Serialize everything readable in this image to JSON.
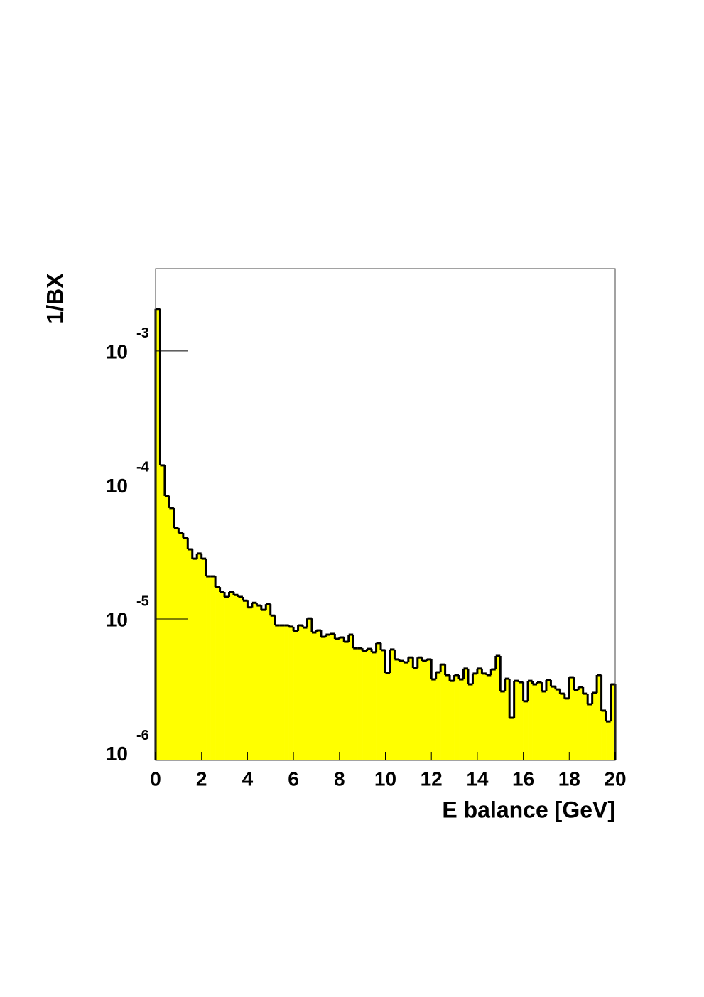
{
  "chart_data": {
    "type": "histogram",
    "ylabel": "1/BX",
    "xlabel": "E balance  [GeV]",
    "bins": [
      0,
      0.2,
      0.4,
      0.6,
      0.8,
      1,
      1.2,
      1.4,
      1.6,
      1.8,
      2,
      2.2,
      2.4,
      2.6,
      2.8,
      3,
      3.2,
      3.4,
      3.6,
      3.8,
      4,
      4.2,
      4.4,
      4.6,
      4.8,
      5,
      5.2,
      5.4,
      5.6,
      5.8,
      6,
      6.2,
      6.4,
      6.6,
      6.8,
      7,
      7.2,
      7.4,
      7.6,
      7.8,
      8,
      8.2,
      8.4,
      8.6,
      8.8,
      9,
      9.2,
      9.4,
      9.6,
      9.8,
      10,
      10.2,
      10.4,
      10.6,
      10.8,
      11,
      11.2,
      11.4,
      11.6,
      11.8,
      12,
      12.2,
      12.4,
      12.6,
      12.8,
      13,
      13.2,
      13.4,
      13.6,
      13.8,
      14,
      14.2,
      14.4,
      14.6,
      14.8,
      15,
      15.2,
      15.4,
      15.6,
      15.8,
      16,
      16.2,
      16.4,
      16.6,
      16.8,
      17,
      17.2,
      17.4,
      17.6,
      17.8,
      18,
      18.2,
      18.4,
      18.6,
      18.8,
      19,
      19.2,
      19.4,
      19.6,
      19.8,
      20
    ],
    "values": [
      0.00206,
      0.00014,
      8.28e-05,
      6.73e-05,
      4.78e-05,
      4.39e-05,
      4.03e-05,
      3.31e-05,
      2.82e-05,
      3.08e-05,
      2.82e-05,
      2.08e-05,
      2.08e-05,
      1.73e-05,
      1.59e-05,
      1.46e-05,
      1.59e-05,
      1.51e-05,
      1.46e-05,
      1.37e-05,
      1.22e-05,
      1.32e-05,
      1.26e-05,
      1.17e-05,
      1.29e-05,
      1.06e-05,
      8.96e-06,
      8.96e-06,
      8.96e-06,
      8.75e-06,
      8.13e-06,
      8.96e-06,
      8.63e-06,
      1.01e-05,
      7.93e-06,
      8.22e-06,
      7.36e-06,
      7.64e-06,
      7.74e-06,
      7.1e-06,
      7.28e-06,
      6.76e-06,
      7.64e-06,
      6.05e-06,
      6.05e-06,
      5.77e-06,
      5.98e-06,
      5.64e-06,
      6.61e-06,
      5.85e-06,
      3.95e-06,
      5.92e-06,
      4.99e-06,
      4.86e-06,
      4.74e-06,
      5.16e-06,
      4.31e-06,
      5.16e-06,
      4.86e-06,
      4.99e-06,
      3.54e-06,
      4e-06,
      4.57e-06,
      3.81e-06,
      3.45e-06,
      3.81e-06,
      3.54e-06,
      4.26e-06,
      3.25e-06,
      3.91e-06,
      4.26e-06,
      3.91e-06,
      3.81e-06,
      4.2e-06,
      5.3e-06,
      2.88e-06,
      3.58e-06,
      1.83e-06,
      3.45e-06,
      3.37e-06,
      2.43e-06,
      3.45e-06,
      3.25e-06,
      3.37e-06,
      2.88e-06,
      3.5e-06,
      3.13e-06,
      2.98e-06,
      2.77e-06,
      2.55e-06,
      3.67e-06,
      2.95e-06,
      3.1e-06,
      2.77e-06,
      2.31e-06,
      2.81e-06,
      3.81e-06,
      2.07e-06,
      1.72e-06,
      3.25e-06
    ],
    "color": "#ffff00",
    "edge_color": "#000000",
    "xlim": [
      0,
      20
    ],
    "xticks": [
      0,
      2,
      4,
      6,
      8,
      10,
      12,
      14,
      16,
      18,
      20
    ],
    "ylim": [
      8.8e-07,
      0.00412
    ],
    "log_y": true,
    "yticks": [
      {
        "value": 0.001,
        "label": "10",
        "exponent": "-3"
      },
      {
        "value": 0.0001,
        "label": "10",
        "exponent": "-4"
      },
      {
        "value": 1e-05,
        "label": "10",
        "exponent": "-5"
      },
      {
        "value": 1e-06,
        "label": "10",
        "exponent": "-6"
      }
    ]
  }
}
